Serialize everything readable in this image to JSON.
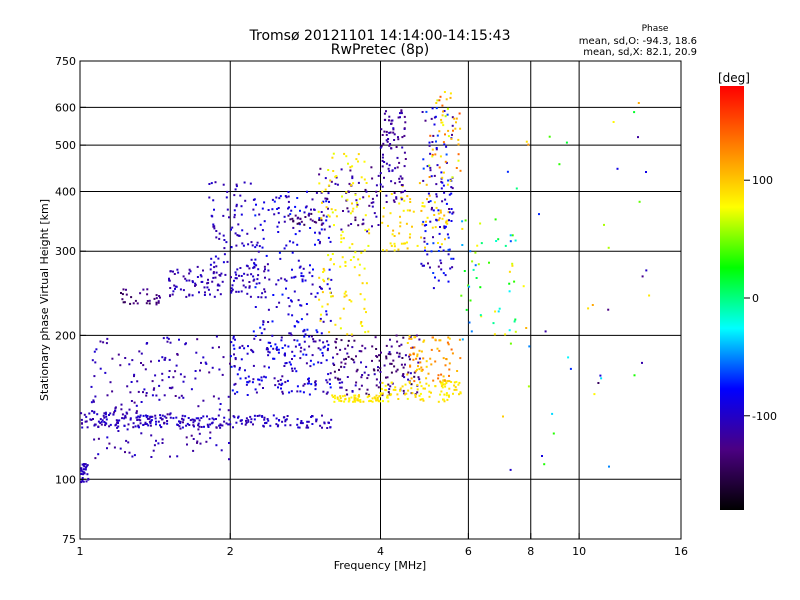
{
  "chart_data": {
    "type": "scatter",
    "title": "Tromsø 20121101 14:14:00-14:15:43",
    "subtitle": "RwPretec (8p)",
    "xlabel": "Frequency [MHz]",
    "ylabel": "Stationary phase Virtual Height [km]",
    "x_scale": "log",
    "y_scale": "log",
    "xlim": [
      1,
      16
    ],
    "ylim": [
      75,
      750
    ],
    "x_ticks": [
      1,
      2,
      4,
      6,
      8,
      10,
      16
    ],
    "y_ticks": [
      75,
      100,
      200,
      300,
      400,
      500,
      600,
      750
    ],
    "x_gridlines": [
      2,
      4,
      6,
      8,
      10
    ],
    "y_gridlines": [
      100,
      200,
      300,
      400,
      500,
      600
    ],
    "grid": true,
    "stats": {
      "heading": "Phase",
      "line_o": "mean, sd,O: -94.3, 18.6",
      "line_x": "mean, sd,X:  82.1, 20.9"
    },
    "colorbar": {
      "label": "[deg]",
      "range": [
        -180,
        180
      ],
      "ticks": [
        100,
        0,
        -100
      ],
      "colormap": "rainbow",
      "colors": [
        "#000000",
        "#4b0082",
        "#0000ff",
        "#00ffff",
        "#00ff00",
        "#ffff00",
        "#ff8000",
        "#ff0000"
      ]
    },
    "clusters": [
      {
        "f": [
          1.0,
          1.04
        ],
        "h": [
          98,
          108
        ],
        "phase": [
          -110,
          -100
        ],
        "n": 35
      },
      {
        "f": [
          1.0,
          1.5
        ],
        "h": [
          128,
          138
        ],
        "phase": [
          -120,
          -95
        ],
        "n": 90
      },
      {
        "f": [
          1.3,
          3.2
        ],
        "h": [
          128,
          136
        ],
        "phase": [
          -115,
          -90
        ],
        "n": 160
      },
      {
        "f": [
          1.05,
          2.0
        ],
        "h": [
          110,
          200
        ],
        "phase": [
          -125,
          -95
        ],
        "n": 200
      },
      {
        "f": [
          1.2,
          1.45
        ],
        "h": [
          232,
          250
        ],
        "phase": [
          -150,
          -120
        ],
        "n": 30
      },
      {
        "f": [
          1.5,
          2.4
        ],
        "h": [
          240,
          280
        ],
        "phase": [
          -120,
          -95
        ],
        "n": 120
      },
      {
        "f": [
          1.8,
          2.3
        ],
        "h": [
          270,
          420
        ],
        "phase": [
          -115,
          -90
        ],
        "n": 80
      },
      {
        "f": [
          2.0,
          3.2
        ],
        "h": [
          150,
          200
        ],
        "phase": [
          -120,
          -70
        ],
        "n": 180
      },
      {
        "f": [
          2.2,
          3.2
        ],
        "h": [
          200,
          400
        ],
        "phase": [
          -115,
          -70
        ],
        "n": 180
      },
      {
        "f": [
          2.6,
          3.1
        ],
        "h": [
          340,
          360
        ],
        "phase": [
          -150,
          -120
        ],
        "n": 25
      },
      {
        "f": [
          3.2,
          4.8
        ],
        "h": [
          150,
          200
        ],
        "phase": [
          -150,
          -100
        ],
        "n": 150
      },
      {
        "f": [
          3.0,
          4.0
        ],
        "h": [
          330,
          450
        ],
        "phase": [
          -140,
          -100
        ],
        "n": 60
      },
      {
        "f": [
          3.2,
          4.0
        ],
        "h": [
          145,
          150
        ],
        "phase": [
          75,
          95
        ],
        "n": 60
      },
      {
        "f": [
          4.0,
          5.8
        ],
        "h": [
          145,
          160
        ],
        "phase": [
          75,
          95
        ],
        "n": 90
      },
      {
        "f": [
          3.0,
          3.8
        ],
        "h": [
          200,
          480
        ],
        "phase": [
          70,
          100
        ],
        "n": 120
      },
      {
        "f": [
          4.0,
          5.5
        ],
        "h": [
          300,
          420
        ],
        "phase": [
          80,
          110
        ],
        "n": 80
      },
      {
        "f": [
          4.5,
          5.8
        ],
        "h": [
          160,
          200
        ],
        "phase": [
          90,
          140
        ],
        "n": 80
      },
      {
        "f": [
          4.0,
          4.5
        ],
        "h": [
          380,
          600
        ],
        "phase": [
          -130,
          -100
        ],
        "n": 90
      },
      {
        "f": [
          4.8,
          5.6
        ],
        "h": [
          250,
          600
        ],
        "phase": [
          -130,
          -60
        ],
        "n": 120
      },
      {
        "f": [
          5.0,
          5.8
        ],
        "h": [
          420,
          650
        ],
        "phase": [
          60,
          150
        ],
        "n": 50
      },
      {
        "f": [
          5.8,
          7.5
        ],
        "h": [
          190,
          350
        ],
        "phase": [
          -60,
          90
        ],
        "n": 50
      },
      {
        "f": [
          7.0,
          14.0
        ],
        "h": [
          100,
          620
        ],
        "phase": [
          -150,
          130
        ],
        "n": 45
      }
    ]
  }
}
